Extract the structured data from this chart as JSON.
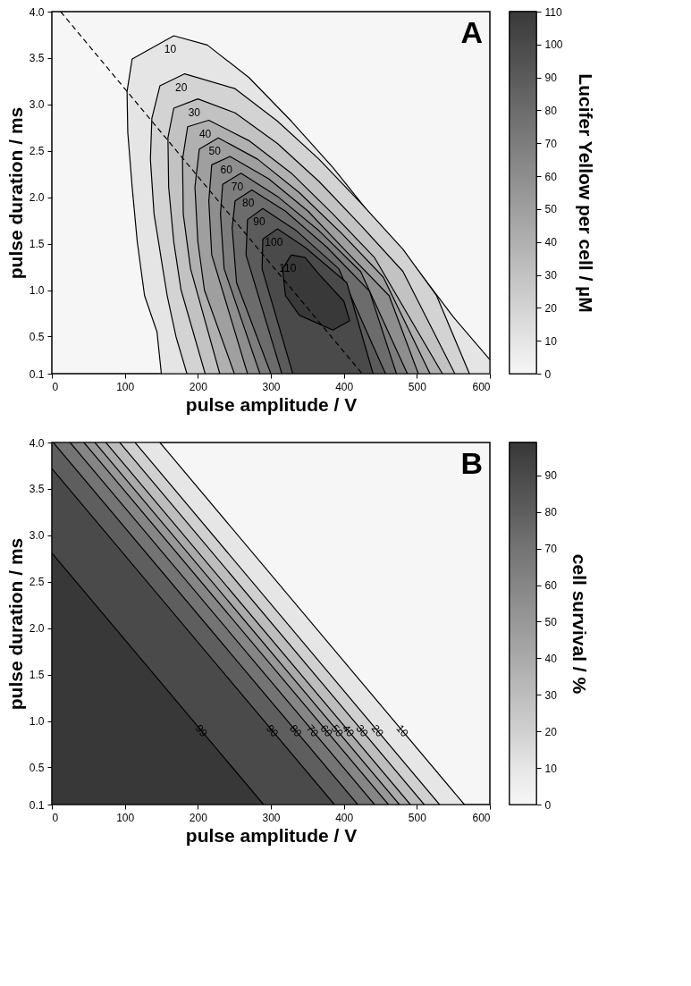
{
  "chart_data": [
    {
      "type": "area",
      "xlabel": "pulse amplitude / V",
      "ylabel": "pulse duration / ms",
      "clabel": "Lucifer Yellow per cell / µM",
      "annotations": [
        "A"
      ],
      "xlim": [
        0,
        600
      ],
      "xticks": [
        0,
        100,
        200,
        300,
        400,
        500,
        600
      ],
      "ylim": [
        0.1,
        4.0
      ],
      "yticks": [
        0.1,
        0.5,
        {
          "value": 1,
          "label": "1.0"
        },
        1.5,
        {
          "value": 2,
          "label": "2.0"
        },
        2.5,
        {
          "value": 3,
          "label": "3.0"
        },
        3.5,
        {
          "value": 4,
          "label": "4.0"
        }
      ],
      "clim": [
        0,
        110
      ],
      "cticks": [
        0,
        10,
        20,
        30,
        40,
        50,
        60,
        70,
        80,
        90,
        100,
        110
      ],
      "series": [
        {
          "name": "10",
          "color": "#e5e5e5",
          "x": [
            150,
            144,
            127,
            117,
            110,
            104,
            103,
            110,
            167,
            213,
            270,
            328,
            385,
            442,
            500,
            550,
            600,
            600,
            150
          ],
          "values": [
            0.1,
            0.55,
            0.94,
            1.52,
            2.11,
            2.7,
            3.14,
            3.49,
            3.74,
            3.64,
            3.29,
            2.82,
            2.32,
            1.76,
            1.23,
            0.71,
            0.25,
            0.1,
            0.1
          ]
        },
        {
          "name": "20",
          "color": "#d3d3d3",
          "x": [
            185,
            170,
            158,
            152,
            140,
            135,
            137,
            148,
            182,
            251,
            309,
            366,
            423,
            481,
            527,
            572,
            185
          ],
          "values": [
            0.1,
            0.5,
            0.94,
            1.23,
            1.82,
            2.41,
            2.85,
            3.2,
            3.33,
            3.17,
            2.82,
            2.41,
            1.94,
            1.44,
            0.94,
            0.1,
            0.1
          ]
        },
        {
          "name": "30",
          "color": "#c2c2c2",
          "x": [
            210,
            177,
            167,
            160,
            159,
            167,
            200,
            251,
            309,
            366,
            423,
            481,
            552,
            210
          ],
          "values": [
            0.1,
            1.0,
            1.52,
            2.11,
            2.64,
            2.96,
            3.06,
            2.91,
            2.58,
            2.17,
            1.7,
            1.2,
            0.1,
            0.1
          ]
        },
        {
          "name": "40",
          "color": "#b0b0b0",
          "x": [
            230,
            190,
            180,
            179,
            186,
            215,
            270,
            328,
            385,
            442,
            535,
            230
          ],
          "values": [
            0.1,
            1.23,
            1.82,
            2.41,
            2.76,
            2.83,
            2.61,
            2.26,
            1.82,
            1.35,
            0.1,
            0.1
          ]
        },
        {
          "name": "50",
          "color": "#9f9f9f",
          "x": [
            250,
            209,
            200,
            196,
            202,
            228,
            282,
            339,
            397,
            454,
            518,
            250
          ],
          "values": [
            0.1,
            1.0,
            1.52,
            2.11,
            2.52,
            2.64,
            2.41,
            2.05,
            1.61,
            1.14,
            0.1,
            0.1
          ]
        },
        {
          "name": "60",
          "color": "#8e8e8e",
          "x": [
            268,
            219,
            215,
            219,
            244,
            297,
            351,
            404,
            462,
            502,
            268
          ],
          "values": [
            0.1,
            1.38,
            1.96,
            2.35,
            2.44,
            2.2,
            1.85,
            1.41,
            0.94,
            0.1,
            0.1
          ]
        },
        {
          "name": "70",
          "color": "#7d7d7d",
          "x": [
            285,
            236,
            231,
            234,
            259,
            309,
            366,
            423,
            487,
            285
          ],
          "values": [
            0.1,
            1.23,
            1.82,
            2.14,
            2.26,
            2.01,
            1.64,
            1.2,
            0.1,
            0.1
          ]
        },
        {
          "name": "80",
          "color": "#6c6c6c",
          "x": [
            300,
            253,
            247,
            251,
            274,
            320,
            377,
            435,
            472,
            300
          ],
          "values": [
            0.1,
            1.08,
            1.67,
            1.96,
            2.08,
            1.85,
            1.46,
            0.99,
            0.1,
            0.1
          ]
        },
        {
          "name": "90",
          "color": "#5b5b5b",
          "x": [
            315,
            266,
            268,
            289,
            335,
            393,
            457,
            315
          ],
          "values": [
            0.1,
            1.38,
            1.76,
            1.88,
            1.64,
            1.23,
            0.1,
            0.1
          ]
        },
        {
          "name": "100",
          "color": "#4a4a4a",
          "x": [
            330,
            288,
            289,
            309,
            347,
            404,
            440,
            330
          ],
          "values": [
            0.1,
            1.23,
            1.55,
            1.66,
            1.46,
            1.08,
            0.1,
            0.1
          ]
        },
        {
          "name": "110",
          "color": "#393939",
          "x": [
            328,
            316,
            320,
            339,
            385,
            408,
            400,
            366,
            347,
            328
          ],
          "values": [
            1.38,
            1.23,
            0.94,
            0.73,
            0.57,
            0.67,
            0.88,
            1.17,
            1.35,
            1.38
          ]
        },
        {
          "type": "line",
          "color": "#000000",
          "line_style": "dashed",
          "x": [
            12,
            425
          ],
          "values": [
            4.0,
            0.1
          ]
        }
      ]
    },
    {
      "type": "area",
      "xlabel": "pulse amplitude / V",
      "ylabel": "pulse duration / ms",
      "clabel": "cell survival / %",
      "annotations": [
        "B"
      ],
      "xlim": [
        0,
        600
      ],
      "xticks": [
        0,
        100,
        200,
        300,
        400,
        500,
        600
      ],
      "ylim": [
        0.1,
        4.0
      ],
      "yticks": [
        0.1,
        0.5,
        {
          "value": 1,
          "label": "1.0"
        },
        1.5,
        {
          "value": 2,
          "label": "2.0"
        },
        2.5,
        {
          "value": 3,
          "label": "3.0"
        },
        3.5,
        {
          "value": 4,
          "label": "4.0"
        }
      ],
      "clim": [
        0,
        99
      ],
      "cticks": [
        0,
        10,
        20,
        30,
        40,
        50,
        60,
        70,
        80,
        90
      ],
      "series": [
        {
          "name": "10",
          "color": "#e6e6e6",
          "x": [
            0,
            148,
            565
          ],
          "values": [
            4.0,
            4.0,
            0.1
          ]
        },
        {
          "name": "20",
          "color": "#d0d0d0",
          "x": [
            0,
            114,
            531
          ],
          "values": [
            4.0,
            4.0,
            0.1
          ]
        },
        {
          "name": "30",
          "color": "#bdbdbd",
          "x": [
            0,
            93,
            510
          ],
          "values": [
            4.0,
            4.0,
            0.1
          ]
        },
        {
          "name": "40",
          "color": "#aaaaaa",
          "x": [
            0,
            74,
            491
          ],
          "values": [
            4.0,
            4.0,
            0.1
          ]
        },
        {
          "name": "50",
          "color": "#989898",
          "x": [
            0,
            59,
            476
          ],
          "values": [
            4.0,
            4.0,
            0.1
          ]
        },
        {
          "name": "60",
          "color": "#868686",
          "x": [
            0,
            44,
            461
          ],
          "values": [
            4.0,
            4.0,
            0.1
          ]
        },
        {
          "name": "70",
          "color": "#747474",
          "x": [
            0,
            25,
            442
          ],
          "values": [
            4.0,
            4.0,
            0.1
          ]
        },
        {
          "name": "80",
          "color": "#5e5e5e",
          "x": [
            0,
            2,
            419
          ],
          "values": [
            4.0,
            4.0,
            0.1
          ]
        },
        {
          "name": "90",
          "color": "#4a4a4a",
          "x": [
            0,
            387
          ],
          "values": [
            3.72,
            0.1
          ]
        },
        {
          "name": "99",
          "color": "#383838",
          "x": [
            0,
            290
          ],
          "values": [
            2.81,
            0.1
          ]
        }
      ]
    }
  ]
}
